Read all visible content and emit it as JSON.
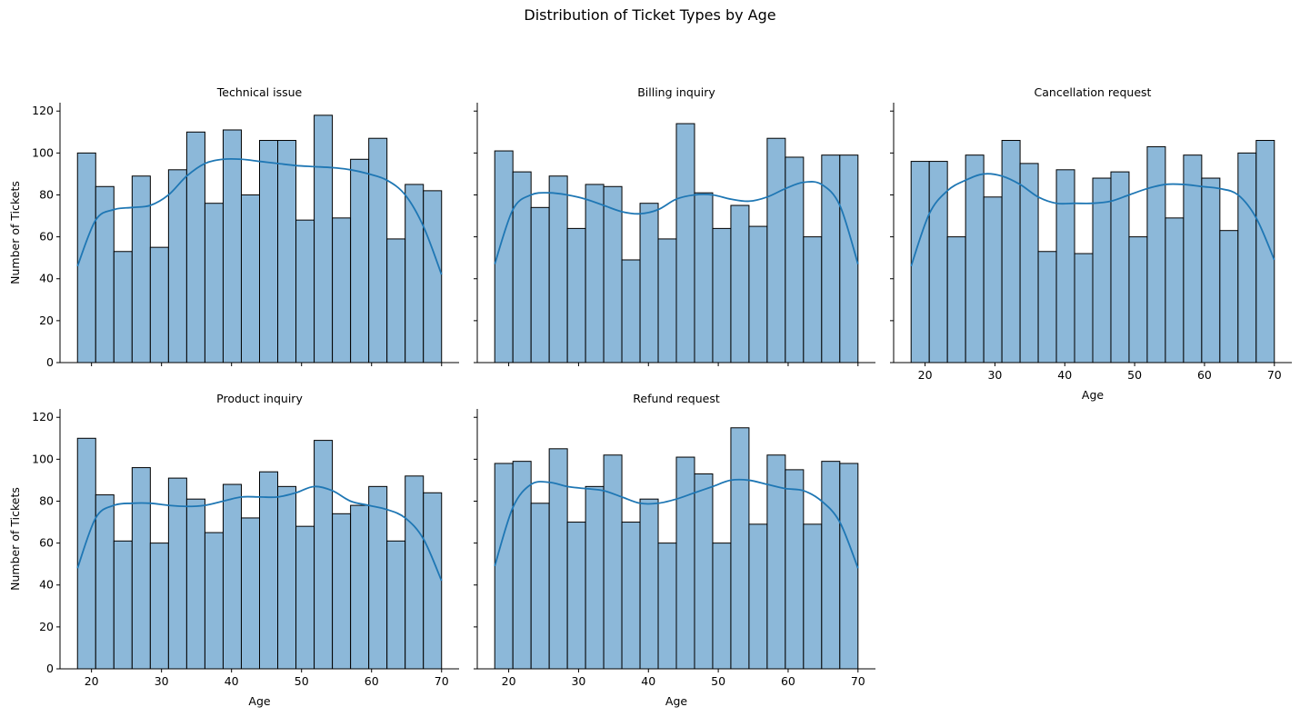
{
  "figure": {
    "title": "Distribution of Ticket Types by Age"
  },
  "colors": {
    "bar_fill": "#8cb8d9",
    "bar_edge": "#000000",
    "kde_line": "#1f77b4"
  },
  "chart_data": [
    {
      "type": "histogram",
      "title": "Technical issue",
      "xlabel": "",
      "ylabel": "Number of Tickets",
      "bin_start": 18,
      "bin_width": 2.6,
      "values": [
        100,
        84,
        53,
        89,
        55,
        92,
        110,
        76,
        111,
        80,
        106,
        106,
        68,
        118,
        69,
        97,
        107,
        59,
        85,
        82
      ],
      "kde": [
        46,
        68,
        73,
        74,
        75,
        80,
        89,
        95,
        97,
        97,
        96,
        95,
        94,
        93.5,
        93,
        92,
        90,
        87,
        80,
        65,
        42
      ],
      "xlim": [
        15.5,
        72.5
      ],
      "ylim": [
        0,
        124
      ],
      "xticks": [
        20,
        30,
        40,
        50,
        60,
        70
      ],
      "yticks": [
        0,
        20,
        40,
        60,
        80,
        100,
        120
      ],
      "show_xticklabels": false,
      "show_yticklabels": true,
      "grid": false
    },
    {
      "type": "histogram",
      "title": "Billing inquiry",
      "xlabel": "",
      "ylabel": "",
      "bin_start": 18,
      "bin_width": 2.6,
      "values": [
        101,
        91,
        74,
        89,
        64,
        85,
        84,
        49,
        76,
        59,
        114,
        81,
        64,
        75,
        65,
        107,
        98,
        60,
        99,
        99
      ],
      "kde": [
        47,
        73,
        80,
        81,
        80,
        78,
        75,
        72,
        71,
        73,
        78,
        80,
        80,
        78,
        77,
        79,
        83,
        86,
        85,
        75,
        47
      ],
      "xlim": [
        15.5,
        72.5
      ],
      "ylim": [
        0,
        124
      ],
      "xticks": [
        20,
        30,
        40,
        50,
        60,
        70
      ],
      "yticks": [
        0,
        20,
        40,
        60,
        80,
        100,
        120
      ],
      "show_xticklabels": false,
      "show_yticklabels": false,
      "grid": false
    },
    {
      "type": "histogram",
      "title": "Cancellation request",
      "xlabel": "Age",
      "ylabel": "",
      "bin_start": 18,
      "bin_width": 2.6,
      "values": [
        96,
        96,
        60,
        99,
        79,
        106,
        95,
        53,
        92,
        52,
        88,
        91,
        60,
        103,
        69,
        99,
        88,
        63,
        100,
        106
      ],
      "kde": [
        46,
        71,
        82,
        87,
        90,
        89,
        85,
        79,
        76,
        76,
        76,
        77,
        80,
        83,
        85,
        85,
        84,
        83,
        80,
        69,
        49
      ],
      "xlim": [
        15.5,
        72.5
      ],
      "ylim": [
        0,
        124
      ],
      "xticks": [
        20,
        30,
        40,
        50,
        60,
        70
      ],
      "yticks": [
        0,
        20,
        40,
        60,
        80,
        100,
        120
      ],
      "show_xticklabels": true,
      "show_yticklabels": false,
      "grid": false
    },
    {
      "type": "histogram",
      "title": "Product inquiry",
      "xlabel": "Age",
      "ylabel": "Number of Tickets",
      "bin_start": 18,
      "bin_width": 2.6,
      "values": [
        110,
        83,
        61,
        96,
        60,
        91,
        81,
        65,
        88,
        72,
        94,
        87,
        68,
        109,
        74,
        78,
        87,
        61,
        92,
        84
      ],
      "kde": [
        48,
        72,
        78,
        79,
        79,
        78,
        77.5,
        78,
        80,
        82,
        82,
        82,
        84,
        87,
        85,
        80,
        78,
        76,
        72,
        62,
        42
      ],
      "xlim": [
        15.5,
        72.5
      ],
      "ylim": [
        0,
        124
      ],
      "xticks": [
        20,
        30,
        40,
        50,
        60,
        70
      ],
      "yticks": [
        0,
        20,
        40,
        60,
        80,
        100,
        120
      ],
      "show_xticklabels": true,
      "show_yticklabels": true,
      "grid": false
    },
    {
      "type": "histogram",
      "title": "Refund request",
      "xlabel": "Age",
      "ylabel": "",
      "bin_start": 18,
      "bin_width": 2.6,
      "values": [
        98,
        99,
        79,
        105,
        70,
        87,
        102,
        70,
        81,
        60,
        101,
        93,
        60,
        115,
        69,
        102,
        95,
        69,
        99,
        98
      ],
      "kde": [
        49,
        77,
        88,
        89,
        87,
        86,
        85,
        82,
        79,
        79,
        81,
        84,
        87,
        90,
        90,
        88,
        86,
        85,
        80,
        70,
        48
      ],
      "xlim": [
        15.5,
        72.5
      ],
      "ylim": [
        0,
        124
      ],
      "xticks": [
        20,
        30,
        40,
        50,
        60,
        70
      ],
      "yticks": [
        0,
        20,
        40,
        60,
        80,
        100,
        120
      ],
      "show_xticklabels": true,
      "show_yticklabels": false,
      "grid": false
    }
  ]
}
